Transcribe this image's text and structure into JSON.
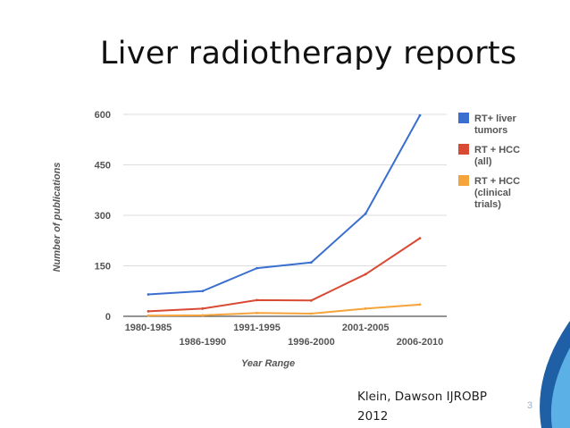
{
  "slide": {
    "title": "Liver radiotherapy reports",
    "citation_lines": [
      "Klein, Dawson IJROBP",
      "2012"
    ],
    "slide_number": "3"
  },
  "colors": {
    "accent_blue": "#1f5fa5",
    "accent_light": "#5bb0e6"
  },
  "chart_data": {
    "type": "line",
    "categories": [
      "1980-1985",
      "1986-1990",
      "1991-1995",
      "1996-2000",
      "2001-2005",
      "2006-2010"
    ],
    "xlabel": "Year Range",
    "ylabel": "Number of publications",
    "ylim": [
      0,
      600
    ],
    "yticks": [
      0,
      150,
      300,
      450,
      600
    ],
    "grid": true,
    "legend_position": "right",
    "series": [
      {
        "name": "RT+ liver tumors",
        "legend_lines": [
          "RT+ liver",
          "tumors"
        ],
        "color": "#3a6fd0",
        "values": [
          65,
          75,
          143,
          160,
          305,
          597
        ]
      },
      {
        "name": "RT + HCC (all)",
        "legend_lines": [
          "RT + HCC",
          "(all)"
        ],
        "color": "#d84a34",
        "values": [
          15,
          23,
          48,
          47,
          125,
          232
        ]
      },
      {
        "name": "RT + HCC (clinical trials)",
        "legend_lines": [
          "RT + HCC",
          "(clinical",
          "trials)"
        ],
        "color": "#f5a43b",
        "values": [
          2,
          3,
          10,
          8,
          23,
          35
        ]
      }
    ]
  }
}
